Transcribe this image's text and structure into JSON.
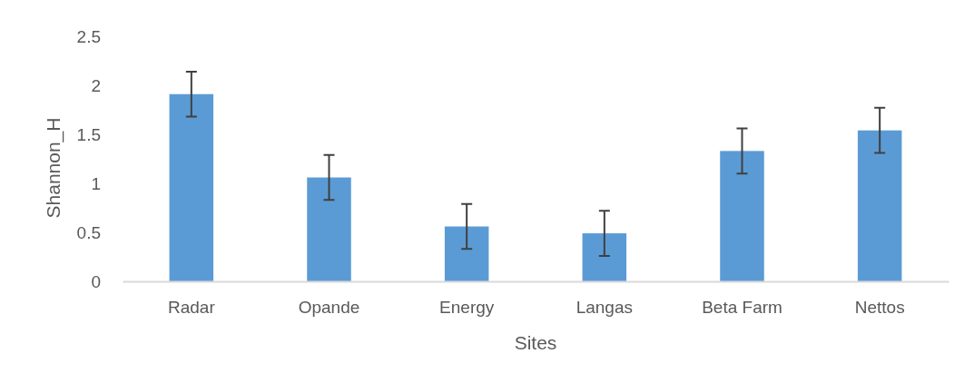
{
  "chart_data": {
    "type": "bar",
    "xlabel": "Sites",
    "ylabel": "Shannon_H",
    "categories": [
      "Radar",
      "Opande",
      "Energy",
      "Langas",
      "Beta Farm",
      "Nettos"
    ],
    "values": [
      1.91,
      1.06,
      0.56,
      0.49,
      1.33,
      1.54
    ],
    "errors": [
      0.23,
      0.23,
      0.23,
      0.23,
      0.23,
      0.23
    ],
    "color": "#5b9bd5",
    "ylim": [
      0,
      2.5
    ],
    "yticks": [
      0,
      0.5,
      1,
      1.5,
      2,
      2.5
    ],
    "grid": false
  }
}
